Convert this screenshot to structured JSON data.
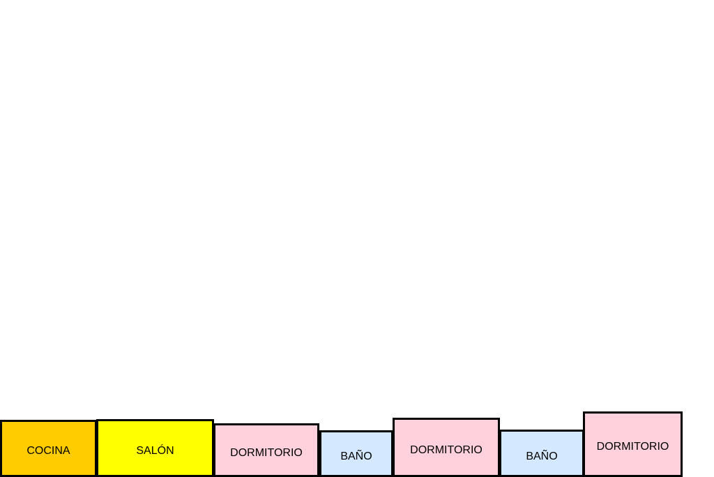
{
  "rooms": [
    {
      "label": "COCINA",
      "color": "#FFCC00"
    },
    {
      "label": "SALÓN",
      "color": "#FFFF00"
    },
    {
      "label": "DORMITORIO",
      "color": "#FFD1DC"
    },
    {
      "label": "BAÑO",
      "color": "#D4E9FF"
    },
    {
      "label": "DORMITORIO",
      "color": "#FFD1DC"
    },
    {
      "label": "BAÑO",
      "color": "#D4E9FF"
    },
    {
      "label": "DORMITORIO",
      "color": "#FFD1DC"
    }
  ]
}
